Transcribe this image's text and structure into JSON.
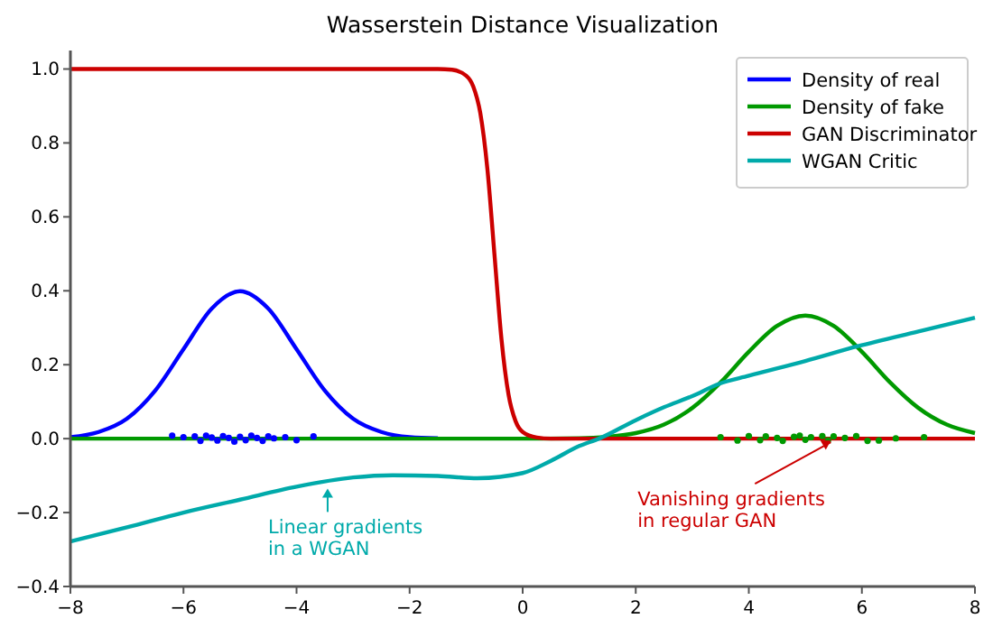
{
  "chart_data": {
    "type": "line",
    "title": "Wasserstein Distance Visualization",
    "xlim": [
      -8,
      8
    ],
    "ylim": [
      -0.4,
      1.05
    ],
    "xticks": [
      {
        "value": -8,
        "label": "−8"
      },
      {
        "value": -6,
        "label": "−6"
      },
      {
        "value": -4,
        "label": "−4"
      },
      {
        "value": -2,
        "label": "−2"
      },
      0,
      2,
      4,
      6,
      8
    ],
    "yticks": [
      {
        "value": -0.4,
        "label": "−0.4"
      },
      {
        "value": -0.2,
        "label": "−0.2"
      },
      {
        "value": 0,
        "label": "0.0"
      },
      {
        "value": 0.2,
        "label": "0.2"
      },
      {
        "value": 0.4,
        "label": "0.4"
      },
      {
        "value": 0.6,
        "label": "0.6"
      },
      {
        "value": 0.8,
        "label": "0.8"
      },
      {
        "value": 1,
        "label": "1.0"
      }
    ],
    "grid": false,
    "legend": "top right",
    "line_style": "solid",
    "series": [
      {
        "name": "Density of real",
        "color": "#0000ff",
        "x": [
          -8,
          -7.5,
          -7,
          -6.5,
          -6,
          -5.5,
          -5,
          -4.5,
          -4,
          -3.5,
          -3,
          -2.5,
          -2,
          -1.5
        ],
        "values": [
          0.004,
          0.018,
          0.054,
          0.13,
          0.242,
          0.352,
          0.399,
          0.352,
          0.242,
          0.13,
          0.054,
          0.018,
          0.004,
          0.001
        ]
      },
      {
        "name": "Density of fake",
        "color": "#009900",
        "x": [
          -8,
          0,
          1,
          1.5,
          2,
          2.5,
          3,
          3.5,
          4,
          4.5,
          5,
          5.5,
          6,
          6.5,
          7,
          7.5,
          8
        ],
        "values": [
          0,
          0,
          0.001,
          0.005,
          0.015,
          0.038,
          0.083,
          0.152,
          0.235,
          0.305,
          0.333,
          0.305,
          0.235,
          0.152,
          0.083,
          0.038,
          0.015
        ]
      },
      {
        "name": "GAN Discriminator",
        "color": "#cc0000",
        "x": [
          -8,
          -1.5,
          -1.25,
          -1,
          -0.875,
          -0.75,
          -0.625,
          -0.5,
          -0.375,
          -0.25,
          -0.125,
          0,
          0.25,
          0.5,
          8
        ],
        "values": [
          1,
          1,
          0.998,
          0.982,
          0.953,
          0.881,
          0.731,
          0.5,
          0.269,
          0.119,
          0.047,
          0.018,
          0.003,
          0,
          0
        ]
      },
      {
        "name": "WGAN Critic",
        "color": "#00aaaa",
        "x": [
          -8,
          -7,
          -6,
          -5,
          -4,
          -3,
          -2.3,
          -1.5,
          -0.8,
          0,
          0.5,
          1,
          1.35,
          2,
          2.5,
          3,
          3.47,
          4,
          5,
          5.93,
          7,
          8
        ],
        "values": [
          -0.278,
          -0.24,
          -0.2,
          -0.165,
          -0.13,
          -0.105,
          -0.099,
          -0.101,
          -0.107,
          -0.093,
          -0.06,
          -0.02,
          0,
          0.05,
          0.085,
          0.115,
          0.148,
          0.17,
          0.21,
          0.25,
          0.29,
          0.327
        ]
      },
      {
        "type": "scatter",
        "marker": "circle",
        "color": "#0000ff",
        "x": [
          -6.2,
          -6.0,
          -5.8,
          -5.7,
          -5.6,
          -5.5,
          -5.4,
          -5.3,
          -5.2,
          -5.1,
          -5.0,
          -4.9,
          -4.8,
          -4.7,
          -4.6,
          -4.5,
          -4.4,
          -4.2,
          -4.0,
          -3.7
        ],
        "values": [
          0.008,
          0.004,
          0.006,
          -0.006,
          0.008,
          0.003,
          -0.005,
          0.007,
          0.002,
          -0.008,
          0.005,
          -0.004,
          0.008,
          0.002,
          -0.006,
          0.006,
          0.001,
          0.004,
          -0.004,
          0.006
        ]
      },
      {
        "type": "scatter",
        "marker": "circle",
        "color": "#009900",
        "x": [
          3.5,
          3.8,
          4.0,
          4.2,
          4.3,
          4.5,
          4.6,
          4.8,
          4.9,
          5.0,
          5.1,
          5.3,
          5.4,
          5.5,
          5.7,
          5.9,
          6.1,
          6.3,
          6.6,
          7.1
        ],
        "values": [
          0.004,
          -0.005,
          0.007,
          -0.004,
          0.006,
          0.002,
          -0.006,
          0.005,
          0.008,
          -0.003,
          0.004,
          0.007,
          -0.005,
          0.006,
          0.002,
          0.007,
          -0.006,
          -0.005,
          0.001,
          0.004
        ]
      }
    ],
    "annotations": [
      {
        "text": "Linear gradients\nin a WGAN",
        "x": -3.45,
        "y": -0.13
      },
      {
        "text": "Vanishing gradients\nin regular GAN",
        "x": 5.45,
        "y": 0
      }
    ]
  }
}
